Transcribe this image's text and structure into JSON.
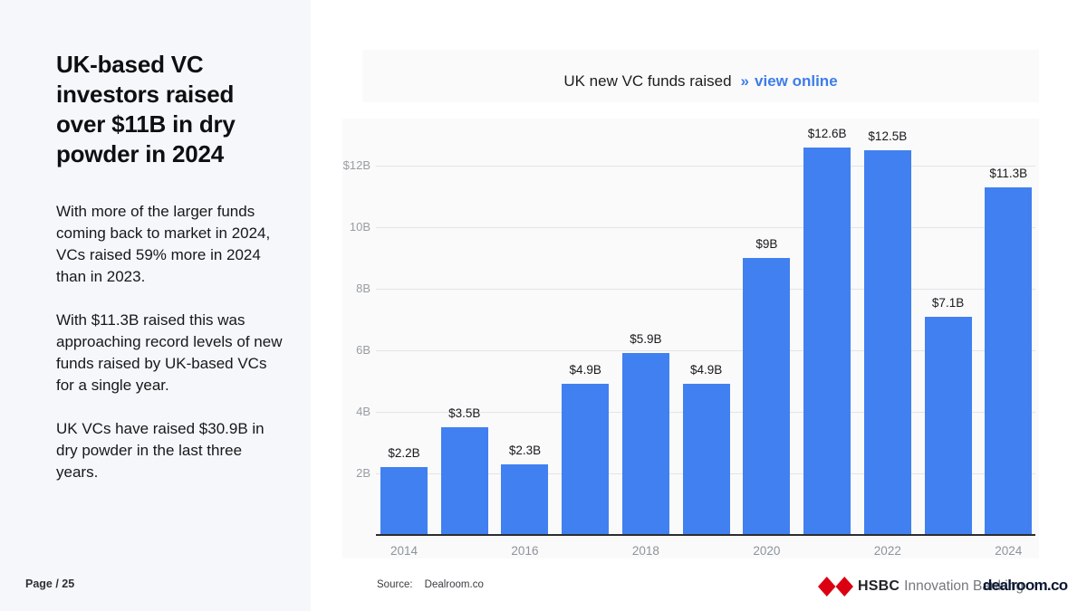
{
  "page": {
    "background": "#ffffff",
    "page_label": "Page / 25"
  },
  "sidebar": {
    "background": "#f5f7fa",
    "title": "UK-based VC investors raised over $11B in dry powder in 2024",
    "paragraphs": [
      "With more of the larger funds coming back to market in 2024, VCs raised 59% more in 2024 than in 2023.",
      "With $11.3B raised this was approaching record levels of new funds raised by UK-based VCs for a single year.",
      "UK VCs have raised $30.9B in dry powder in the last three years."
    ]
  },
  "chart_header": {
    "title_text": "UK new VC funds raised",
    "chevrons": "»",
    "link_label": "view online",
    "link_color": "#3d7de9"
  },
  "chart_data": {
    "type": "bar",
    "title": "UK new VC funds raised",
    "categories": [
      "2014",
      "2015",
      "2016",
      "2017",
      "2018",
      "2019",
      "2020",
      "2021",
      "2022",
      "2023",
      "2024"
    ],
    "values": [
      2.2,
      3.5,
      2.3,
      4.9,
      5.9,
      4.9,
      9,
      12.6,
      12.5,
      7.1,
      11.3
    ],
    "bar_labels": [
      "$2.2B",
      "$3.5B",
      "$2.3B",
      "$4.9B",
      "$5.9B",
      "$4.9B",
      "$9B",
      "$12.6B",
      "$12.5B",
      "$7.1B",
      "$11.3B"
    ],
    "x_tick_labels": [
      "2014",
      "2016",
      "2018",
      "2020",
      "2022",
      "2024"
    ],
    "y_tick_values": [
      12,
      10,
      8,
      6,
      4,
      2
    ],
    "y_tick_labels": [
      "$12B",
      "10B",
      "8B",
      "6B",
      "4B",
      "2B"
    ],
    "ylim": [
      0,
      14
    ],
    "xlabel": "",
    "ylabel": "",
    "unit": "USD billions",
    "grid": true,
    "legend": "none",
    "bar_color": "#4180f0"
  },
  "source": {
    "label": "Source:",
    "value": "Dealroom.co"
  },
  "footer": {
    "hsbc_wordmark": "HSBC",
    "hsbc_subtext": "Innovation Banking",
    "hsbc_red": "#db0011",
    "dealroom_wordmark": "dealroom.co"
  }
}
